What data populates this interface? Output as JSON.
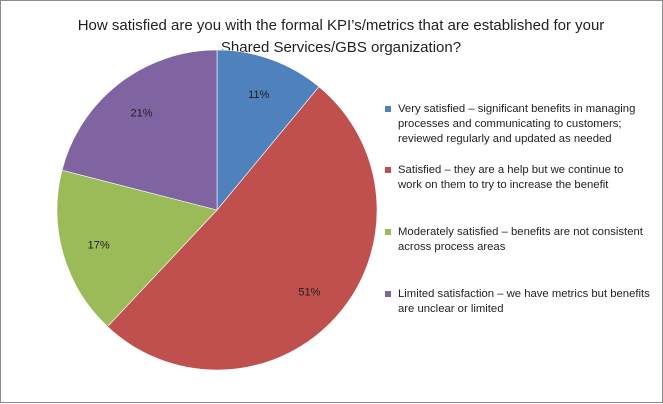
{
  "chart_data": {
    "type": "pie",
    "title": "How satisfied are you with the formal KPI’s/metrics that are established for your Shared Services/GBS organization?",
    "slices": [
      {
        "label": "Very satisfied – significant benefits in managing processes and communicating to customers; reviewed regularly and updated as needed",
        "value": 11,
        "data_label": "11%",
        "color": "#4f81bd"
      },
      {
        "label": "Satisfied – they are a help but we continue to work on them to try to increase the benefit",
        "value": 51,
        "data_label": "51%",
        "color": "#c0504d"
      },
      {
        "label": "Moderately satisfied – benefits are not consistent across process areas",
        "value": 17,
        "data_label": "17%",
        "color": "#9bbb59"
      },
      {
        "label": "Limited satisfaction – we have metrics but benefits are unclear or limited",
        "value": 21,
        "data_label": "21%",
        "color": "#8064a2"
      }
    ],
    "legend_position": "right",
    "start_angle": "12 o'clock, clockwise"
  }
}
